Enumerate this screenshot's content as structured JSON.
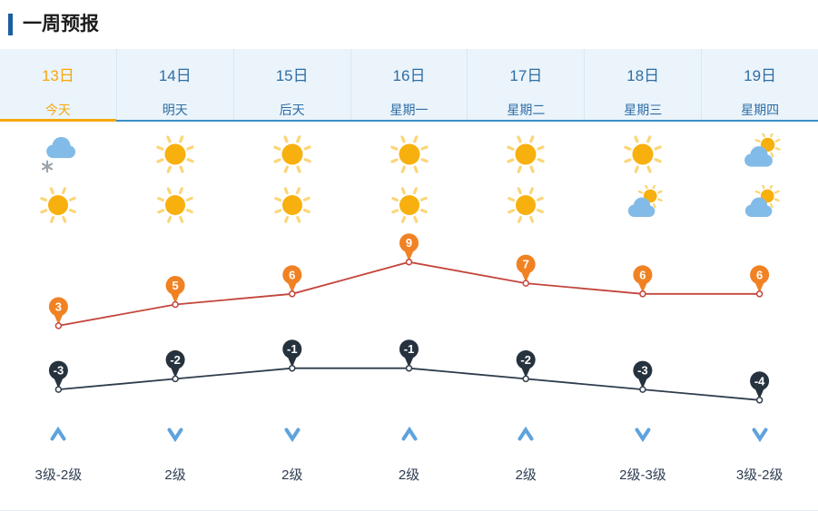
{
  "page": {
    "title": "一周预报"
  },
  "colors": {
    "accent": "#1a5fa0",
    "header_bg": "#ebf4fb",
    "header_border": "#3a8ec8",
    "day_text": "#2e6da4",
    "today": "#f6a70c",
    "high_line": "#c4453c",
    "high_badge": "#f08223",
    "low_line": "#2e3c4d",
    "low_badge": "#26323e",
    "arrow": "#5ea3dd",
    "wind_text": "#2e3d52",
    "sun": "#f7b00e",
    "sun_ray": "#fbd679",
    "cloud": "#82bbe8",
    "flake": "#9aa3ab"
  },
  "days": [
    {
      "date": "13日",
      "name": "今天",
      "today": true,
      "icon_day": "snow",
      "icon_night": "sun",
      "wind_dir": "up",
      "wind_level": "3级-2级"
    },
    {
      "date": "14日",
      "name": "明天",
      "today": false,
      "icon_day": "sun",
      "icon_night": "sun",
      "wind_dir": "down",
      "wind_level": "2级"
    },
    {
      "date": "15日",
      "name": "后天",
      "today": false,
      "icon_day": "sun",
      "icon_night": "sun",
      "wind_dir": "down",
      "wind_level": "2级"
    },
    {
      "date": "16日",
      "name": "星期一",
      "today": false,
      "icon_day": "sun",
      "icon_night": "sun",
      "wind_dir": "up",
      "wind_level": "2级"
    },
    {
      "date": "17日",
      "name": "星期二",
      "today": false,
      "icon_day": "sun",
      "icon_night": "sun",
      "wind_dir": "up",
      "wind_level": "2级"
    },
    {
      "date": "18日",
      "name": "星期三",
      "today": false,
      "icon_day": "sun",
      "icon_night": "partly",
      "wind_dir": "down",
      "wind_level": "2级-3级"
    },
    {
      "date": "19日",
      "name": "星期四",
      "today": false,
      "icon_day": "partly",
      "icon_night": "partly",
      "wind_dir": "down",
      "wind_level": "3级-2级"
    }
  ],
  "chart_data": {
    "type": "line",
    "categories": [
      "13日",
      "14日",
      "15日",
      "16日",
      "17日",
      "18日",
      "19日"
    ],
    "series": [
      {
        "key": "high",
        "values": [
          3,
          5,
          6,
          9,
          7,
          6,
          6
        ],
        "color": "#c4453c",
        "badge": "#f08223"
      },
      {
        "key": "low",
        "values": [
          -3,
          -2,
          -1,
          -1,
          -2,
          -3,
          -4
        ],
        "color": "#2e3c4d",
        "badge": "#26323e"
      }
    ],
    "ylim": [
      -6,
      11
    ],
    "grid": false,
    "legend": "none"
  }
}
